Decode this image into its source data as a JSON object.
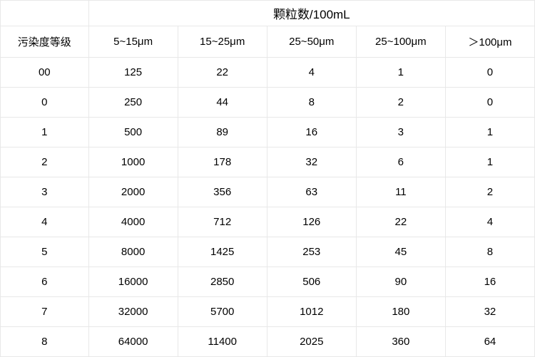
{
  "table": {
    "type": "table",
    "background_color": "#ffffff",
    "grid_color": "#e8e8e8",
    "text_color": "#000000",
    "header_top_fontsize": 17,
    "header_sub_fontsize": 15,
    "cell_fontsize": 15,
    "header_top_label": "颗粒数/100mL",
    "row_header_label": "污染度等级",
    "columns": [
      "5~15μm",
      "15~25μm",
      "25~50μm",
      "25~100μm",
      "＞100μm"
    ],
    "row_labels": [
      "00",
      "0",
      "1",
      "2",
      "3",
      "4",
      "5",
      "6",
      "7",
      "8"
    ],
    "rows": [
      [
        125,
        22,
        4,
        1,
        0
      ],
      [
        250,
        44,
        8,
        2,
        0
      ],
      [
        500,
        89,
        16,
        3,
        1
      ],
      [
        1000,
        178,
        32,
        6,
        1
      ],
      [
        2000,
        356,
        63,
        11,
        2
      ],
      [
        4000,
        712,
        126,
        22,
        4
      ],
      [
        8000,
        1425,
        253,
        45,
        8
      ],
      [
        16000,
        2850,
        506,
        90,
        16
      ],
      [
        32000,
        5700,
        1012,
        180,
        32
      ],
      [
        64000,
        11400,
        2025,
        360,
        64
      ]
    ],
    "col_first_width_pct": 16.5,
    "col_data_width_pct": 16.7
  }
}
